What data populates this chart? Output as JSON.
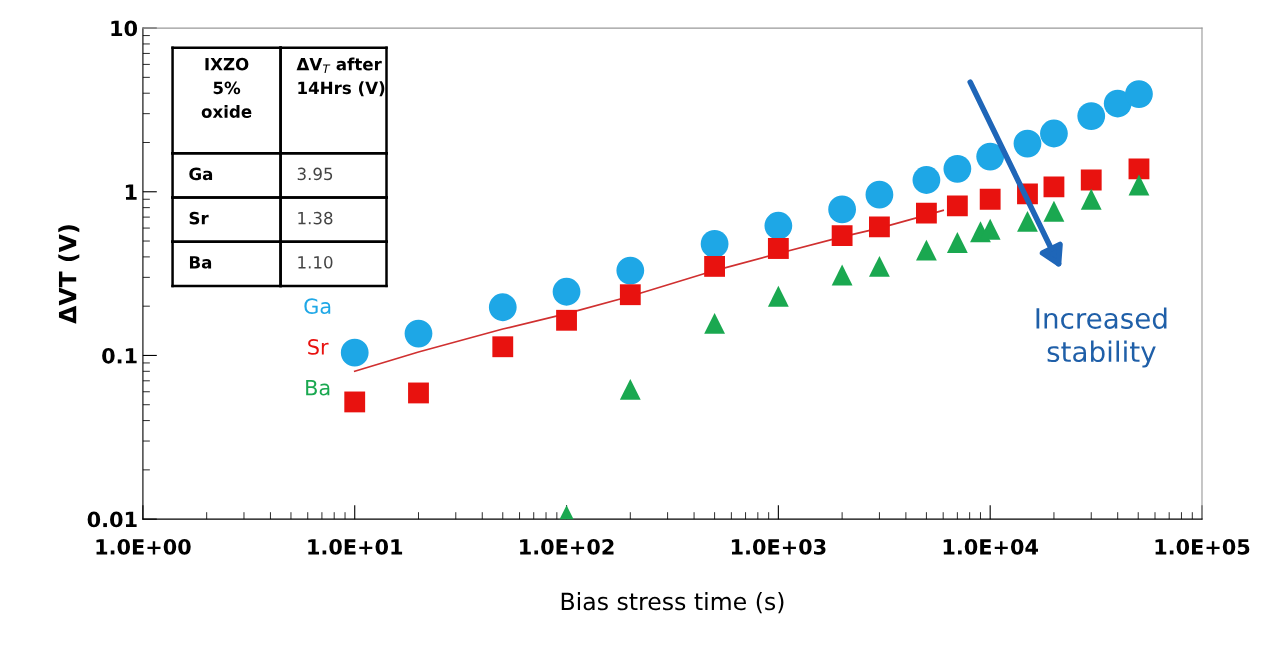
{
  "chart_data": {
    "type": "scatter",
    "xlabel": "Bias stress time (s)",
    "ylabel": "ΔVT (V)",
    "log": "xy",
    "grid": false,
    "legend": "left",
    "xlim": [
      1,
      100000
    ],
    "ylim": [
      0.01,
      10
    ],
    "xticks": [
      {
        "value": 1,
        "label": "1.0E+00"
      },
      {
        "value": 10,
        "label": "1.0E+01"
      },
      {
        "value": 100,
        "label": "1.0E+02"
      },
      {
        "value": 1000,
        "label": "1.0E+03"
      },
      {
        "value": 10000,
        "label": "1.0E+04"
      },
      {
        "value": 100000,
        "label": "1.0E+05"
      }
    ],
    "yticks": [
      0.01,
      0.1,
      1,
      10
    ],
    "series": [
      {
        "name": "Ga",
        "color": "#1ea7e6",
        "marker": "circle",
        "x": [
          10,
          20,
          50,
          100,
          200,
          500,
          1000,
          2000,
          3000,
          5000,
          7000,
          10000,
          15000,
          20000,
          30000,
          40000,
          50400
        ],
        "values": [
          0.104,
          0.136,
          0.197,
          0.245,
          0.33,
          0.48,
          0.62,
          0.78,
          0.96,
          1.18,
          1.38,
          1.64,
          1.97,
          2.27,
          2.9,
          3.46,
          3.95
        ]
      },
      {
        "name": "Sr",
        "color": "#e8120f",
        "marker": "square",
        "x": [
          10,
          20,
          50,
          100,
          200,
          500,
          1000,
          2000,
          3000,
          5000,
          7000,
          10000,
          15000,
          20000,
          30000,
          50400
        ],
        "values": [
          0.052,
          0.059,
          0.113,
          0.164,
          0.235,
          0.35,
          0.45,
          0.54,
          0.61,
          0.74,
          0.82,
          0.9,
          0.97,
          1.07,
          1.18,
          1.38
        ]
      },
      {
        "name": "Ba",
        "color": "#1aa850",
        "marker": "triangle",
        "x": [
          100,
          200,
          500,
          1000,
          2000,
          3000,
          5000,
          7000,
          9000,
          10000,
          15000,
          20000,
          30000,
          50400
        ],
        "values": [
          0.0105,
          0.062,
          0.157,
          0.23,
          0.31,
          0.35,
          0.44,
          0.49,
          0.57,
          0.59,
          0.66,
          0.76,
          0.9,
          1.1
        ]
      },
      {
        "type": "line",
        "color": "#d03030",
        "marker": "none",
        "line_style": "solid",
        "x": [
          10,
          20,
          50,
          100,
          200,
          500,
          1000,
          2000,
          3000,
          5000,
          6000
        ],
        "values": [
          0.08,
          0.105,
          0.145,
          0.18,
          0.23,
          0.33,
          0.42,
          0.53,
          0.6,
          0.72,
          0.77
        ]
      }
    ],
    "annotations": [
      "IXZO\n5%\noxide",
      "ΔV$_{T}$ after\n14Hrs (V)",
      "Ga",
      "3.95",
      "Sr",
      "1.38",
      "Ba",
      "1.10",
      "Increased\nstability"
    ]
  }
}
